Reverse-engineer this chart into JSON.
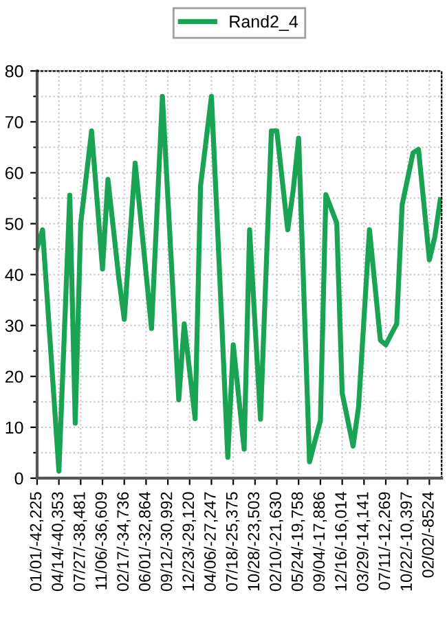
{
  "chart_data": {
    "type": "line",
    "legend": "top",
    "grid": true,
    "marker": "none",
    "line_style": "solid",
    "categories": [
      "01/01/-42,225",
      null,
      null,
      null,
      "04/14/-40,353",
      null,
      null,
      null,
      "07/27/-38,481",
      null,
      null,
      null,
      "11/06/-36,609",
      null,
      null,
      null,
      "02/17/-34,736",
      null,
      null,
      null,
      "06/01/-32,864",
      null,
      null,
      null,
      "09/12/-30,992",
      null,
      null,
      null,
      "12/23/-29,120",
      null,
      null,
      null,
      "04/06/-27,247",
      null,
      null,
      null,
      "07/18/-25,375",
      null,
      null,
      null,
      "10/28/-23,503",
      null,
      null,
      null,
      "02/10/-21,630",
      null,
      null,
      null,
      "05/24/-19,758",
      null,
      null,
      null,
      "09/04/-17,886",
      null,
      null,
      null,
      "12/16/-16,014",
      null,
      null,
      null,
      "03/29/-14,141",
      null,
      null,
      null,
      "07/11/-12,269",
      null,
      null,
      null,
      "10/22/-10,397",
      null,
      null,
      null,
      "02/02/-8524",
      null,
      null
    ],
    "series": [
      {
        "name": "Rand2_4",
        "color": "#1aa352",
        "values": [
          45.2,
          48.8,
          33.0,
          17.2,
          1.4,
          28.5,
          55.6,
          10.8,
          50,
          59.1,
          68.2,
          54.7,
          41.1,
          58.7,
          49.0,
          39.3,
          31.2,
          46.6,
          61.9,
          51.1,
          40.2,
          29.4,
          52.2,
          75,
          55.1,
          35.3,
          15.4,
          30.3,
          21.0,
          11.7,
          57.4,
          66.2,
          75,
          52,
          28.1,
          4.1,
          26.2,
          16.0,
          5.7,
          48.8,
          30.2,
          11.6,
          39.9,
          68.2,
          68.2,
          58.5,
          48.8,
          56.5,
          66.8,
          35.0,
          3.2,
          7.3,
          11.3,
          55.7,
          52.9,
          50.1,
          16.7,
          11.5,
          6.3,
          14,
          31.4,
          48.8,
          38.0,
          27.1,
          26.2,
          28.3,
          30.3,
          53.7,
          58.8,
          63.9,
          64.6,
          53.8,
          42.9,
          47.4,
          54.7
        ]
      }
    ],
    "ylim": [
      0,
      80
    ],
    "yticks": [
      0,
      {
        "value": 5,
        "label": null
      },
      10,
      {
        "value": 15,
        "label": null
      },
      20,
      {
        "value": 25,
        "label": null
      },
      30,
      {
        "value": 35,
        "label": null
      },
      40,
      {
        "value": 45,
        "label": null
      },
      50,
      {
        "value": 55,
        "label": null
      },
      60,
      {
        "value": 65,
        "label": null
      },
      70,
      {
        "value": 75,
        "label": null
      },
      80
    ]
  }
}
